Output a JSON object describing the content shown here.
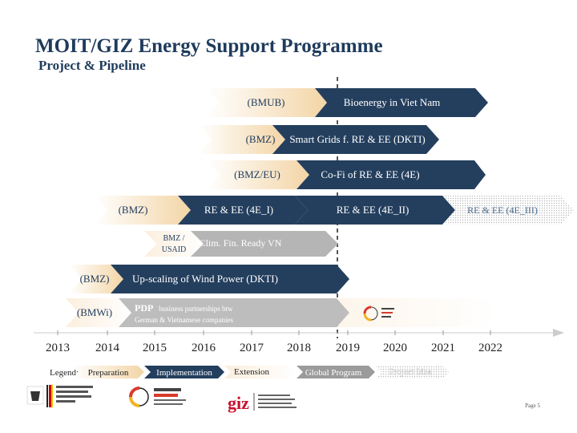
{
  "header": {
    "title": "MOIT/GIZ Energy Support Programme",
    "subtitle": "Project & Pipeline"
  },
  "projects": [
    {
      "funder": "(BMUB)",
      "name": "Bioenergy in Viet Nam"
    },
    {
      "funder": "(BMZ)",
      "name": "Smart Grids f. RE & EE (DKTI)"
    },
    {
      "funder": "(BMZ/EU)",
      "name": "Co-Fi of RE & EE (4E)"
    },
    {
      "funder": "(BMZ)",
      "name": "RE & EE (4E_I)",
      "name2": "RE & EE (4E_II)",
      "name3": "RE & EE (4E_III)"
    },
    {
      "funder": "BMZ / USAID",
      "name": "Clim. Fin. Ready VN"
    },
    {
      "funder": "(BMZ)",
      "name": "Up-scaling of Wind Power (DKTI)"
    },
    {
      "funder": "(BMWi)",
      "name_prefix": "PDP",
      "name": "business partnerships btw German & Vietnamese companies"
    }
  ],
  "timeline": {
    "years": [
      "2013",
      "2014",
      "2015",
      "2016",
      "2017",
      "2018",
      "2019",
      "2020",
      "2021",
      "2022"
    ]
  },
  "legend": {
    "label": "Legend:",
    "items": [
      "Preparation",
      "Implementation",
      "Extension",
      "Global Program",
      "Project Idea"
    ]
  },
  "footer": {
    "page": "Page 5"
  },
  "colors": {
    "navy": "#243f5e",
    "light_phase": "#f6deba",
    "extension_grey": "#bdbdbd",
    "global_program": "#9b9b9b"
  }
}
